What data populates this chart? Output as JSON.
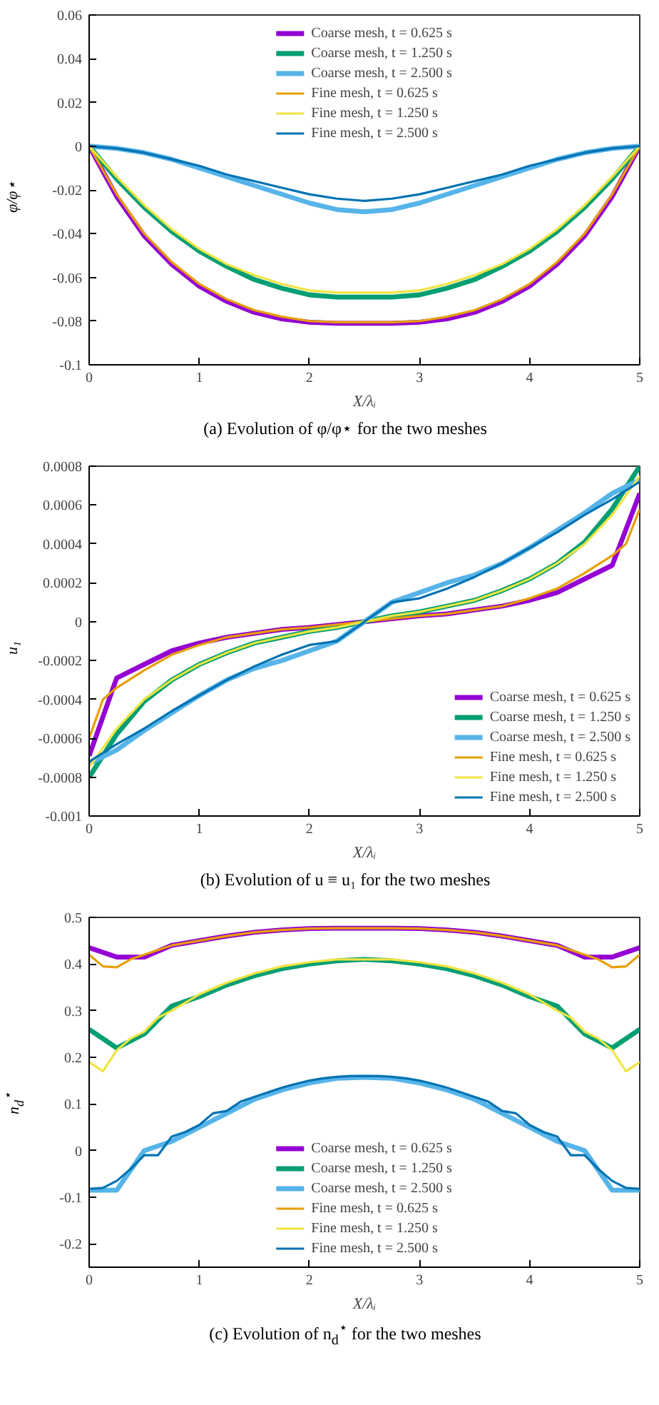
{
  "chart_data": [
    {
      "type": "line",
      "title": "(a) Evolution of φ/φ⋆ for the two meshes",
      "xlabel": "X/λᵢ",
      "ylabel": "φ/φ⋆",
      "x": [
        0,
        0.25,
        0.5,
        0.75,
        1,
        1.25,
        1.5,
        1.75,
        2,
        2.25,
        2.5,
        2.75,
        3,
        3.25,
        3.5,
        3.75,
        4,
        4.25,
        4.5,
        4.75,
        5
      ],
      "xlim": [
        0,
        5
      ],
      "xticks": [
        0,
        1,
        2,
        3,
        4,
        5
      ],
      "ylim": [
        -0.1,
        0.06
      ],
      "yticks": [
        -0.1,
        -0.08,
        -0.06,
        -0.04,
        -0.02,
        0,
        0.02,
        0.04,
        0.06
      ],
      "grid": false,
      "legend": "top",
      "line_style": "solid",
      "marker": "none",
      "series": [
        {
          "name": "Coarse mesh, t = 0.625 s",
          "color": "#9400d3",
          "values": [
            0,
            -0.023,
            -0.041,
            -0.054,
            -0.064,
            -0.071,
            -0.076,
            -0.079,
            -0.0805,
            -0.081,
            -0.081,
            -0.081,
            -0.0805,
            -0.079,
            -0.076,
            -0.071,
            -0.064,
            -0.054,
            -0.041,
            -0.023,
            0
          ]
        },
        {
          "name": "Coarse mesh, t = 1.250 s",
          "color": "#009e73",
          "values": [
            0,
            -0.015,
            -0.028,
            -0.039,
            -0.048,
            -0.055,
            -0.061,
            -0.065,
            -0.068,
            -0.069,
            -0.069,
            -0.069,
            -0.068,
            -0.065,
            -0.061,
            -0.055,
            -0.048,
            -0.039,
            -0.028,
            -0.015,
            0
          ]
        },
        {
          "name": "Coarse mesh, t = 2.500 s",
          "color": "#56b4e9",
          "values": [
            0,
            -0.001,
            -0.003,
            -0.006,
            -0.01,
            -0.014,
            -0.018,
            -0.022,
            -0.026,
            -0.029,
            -0.03,
            -0.029,
            -0.026,
            -0.022,
            -0.018,
            -0.014,
            -0.01,
            -0.006,
            -0.003,
            -0.001,
            0
          ]
        },
        {
          "name": "Fine mesh, t = 0.625 s",
          "color": "#e69f00",
          "values": [
            0,
            -0.022,
            -0.04,
            -0.053,
            -0.063,
            -0.07,
            -0.075,
            -0.078,
            -0.08,
            -0.0805,
            -0.0805,
            -0.0805,
            -0.08,
            -0.078,
            -0.075,
            -0.07,
            -0.063,
            -0.053,
            -0.04,
            -0.022,
            0
          ]
        },
        {
          "name": "Fine mesh, t = 1.250 s",
          "color": "#f0e442",
          "values": [
            0,
            -0.014,
            -0.027,
            -0.038,
            -0.047,
            -0.054,
            -0.059,
            -0.063,
            -0.066,
            -0.067,
            -0.067,
            -0.067,
            -0.066,
            -0.063,
            -0.059,
            -0.054,
            -0.047,
            -0.038,
            -0.027,
            -0.014,
            0
          ]
        },
        {
          "name": "Fine mesh, t = 2.500 s",
          "color": "#0072b2",
          "values": [
            0,
            -0.001,
            -0.003,
            -0.006,
            -0.009,
            -0.013,
            -0.016,
            -0.019,
            -0.022,
            -0.024,
            -0.025,
            -0.024,
            -0.022,
            -0.019,
            -0.016,
            -0.013,
            -0.009,
            -0.006,
            -0.003,
            -0.001,
            0
          ]
        }
      ]
    },
    {
      "type": "line",
      "title": "(b) Evolution of u ≡ u₁ for the two meshes",
      "xlabel": "X/λᵢ",
      "ylabel": "u₁",
      "x": [
        0,
        0.25,
        0.5,
        0.75,
        1,
        1.25,
        1.5,
        1.75,
        2,
        2.25,
        2.5,
        2.75,
        3,
        3.25,
        3.5,
        3.75,
        4,
        4.25,
        4.5,
        4.75,
        5
      ],
      "xlim": [
        0,
        5
      ],
      "xticks": [
        0,
        1,
        2,
        3,
        4,
        5
      ],
      "ylim": [
        -0.001,
        0.0008
      ],
      "yticks": [
        -0.001,
        -0.0008,
        -0.0006,
        -0.0004,
        -0.0002,
        0,
        0.0002,
        0.0004,
        0.0006,
        0.0008
      ],
      "grid": false,
      "legend": "bottom right",
      "line_style": "solid",
      "marker": "none",
      "series": [
        {
          "name": "Coarse mesh, t = 0.625 s",
          "color": "#9400d3",
          "values": [
            -0.00069,
            -0.00029,
            -0.00022,
            -0.00015,
            -0.00011,
            -8e-05,
            -6e-05,
            -4e-05,
            -3e-05,
            -1.5e-05,
            0,
            1.5e-05,
            3e-05,
            4e-05,
            6e-05,
            8e-05,
            0.00011,
            0.00015,
            0.00022,
            0.00029,
            0.00066
          ]
        },
        {
          "name": "Coarse mesh, t = 1.250 s",
          "color": "#009e73",
          "values": [
            -0.0008,
            -0.00058,
            -0.00041,
            -0.0003,
            -0.00022,
            -0.00016,
            -0.00011,
            -8e-05,
            -5e-05,
            -3e-05,
            0,
            3e-05,
            5e-05,
            8e-05,
            0.00011,
            0.00016,
            0.00022,
            0.0003,
            0.00041,
            0.00058,
            0.0008
          ]
        },
        {
          "name": "Coarse mesh, t = 2.500 s",
          "color": "#56b4e9",
          "values": [
            -0.00073,
            -0.00066,
            -0.00056,
            -0.00047,
            -0.00038,
            -0.0003,
            -0.00024,
            -0.0002,
            -0.00015,
            -0.0001,
            0,
            0.0001,
            0.00015,
            0.0002,
            0.00024,
            0.0003,
            0.00038,
            0.00047,
            0.00056,
            0.00066,
            0.00073
          ]
        },
        {
          "name": "Fine mesh, t = 0.625 s",
          "color": "#e69f00",
          "x": [
            0,
            0.125,
            0.25,
            0.5,
            0.75,
            1,
            1.25,
            1.5,
            1.75,
            2,
            2.25,
            2.5,
            2.75,
            3,
            3.25,
            3.5,
            3.75,
            4,
            4.25,
            4.5,
            4.75,
            4.875,
            5
          ],
          "values": [
            -0.0006,
            -0.0004,
            -0.00034,
            -0.00025,
            -0.00017,
            -0.00012,
            -8e-05,
            -6e-05,
            -4e-05,
            -3e-05,
            -1.5e-05,
            0,
            1.5e-05,
            3e-05,
            4e-05,
            6e-05,
            8e-05,
            0.00012,
            0.00017,
            0.00025,
            0.00034,
            0.0004,
            0.00058
          ]
        },
        {
          "name": "Fine mesh, t = 1.250 s",
          "color": "#f0e442",
          "values": [
            -0.00075,
            -0.00055,
            -0.0004,
            -0.0003,
            -0.00022,
            -0.00016,
            -0.00011,
            -8e-05,
            -5e-05,
            -3e-05,
            0,
            3e-05,
            5e-05,
            8e-05,
            0.00011,
            0.00016,
            0.00022,
            0.0003,
            0.0004,
            0.00055,
            0.00075
          ]
        },
        {
          "name": "Fine mesh, t = 2.500 s",
          "color": "#0072b2",
          "values": [
            -0.00072,
            -0.00063,
            -0.00055,
            -0.00046,
            -0.00038,
            -0.0003,
            -0.00023,
            -0.00017,
            -0.00012,
            -0.0001,
            0,
            0.0001,
            0.00012,
            0.00017,
            0.00023,
            0.0003,
            0.00038,
            0.00046,
            0.00055,
            0.00063,
            0.00072
          ]
        }
      ]
    },
    {
      "type": "line",
      "title": "(c) Evolution of n$_{d}$$^{⋆}$ for the two meshes",
      "xlabel": "X/λᵢ",
      "ylabel": "n$_{d}$$^{⋆}$",
      "x": [
        0,
        0.25,
        0.5,
        0.75,
        1,
        1.25,
        1.5,
        1.75,
        2,
        2.25,
        2.5,
        2.75,
        3,
        3.25,
        3.5,
        3.75,
        4,
        4.25,
        4.5,
        4.75,
        5
      ],
      "xlim": [
        0,
        5
      ],
      "xticks": [
        0,
        1,
        2,
        3,
        4,
        5
      ],
      "ylim": [
        -0.25,
        0.5
      ],
      "yticks": [
        -0.2,
        -0.1,
        0,
        0.1,
        0.2,
        0.3,
        0.4,
        0.5
      ],
      "grid": false,
      "legend": "bottom",
      "line_style": "solid",
      "marker": "none",
      "series": [
        {
          "name": "Coarse mesh, t = 0.625 s",
          "color": "#9400d3",
          "values": [
            0.435,
            0.415,
            0.415,
            0.44,
            0.45,
            0.46,
            0.468,
            0.473,
            0.476,
            0.477,
            0.477,
            0.477,
            0.476,
            0.473,
            0.468,
            0.46,
            0.45,
            0.44,
            0.415,
            0.415,
            0.435
          ]
        },
        {
          "name": "Coarse mesh, t = 1.250 s",
          "color": "#009e73",
          "values": [
            0.26,
            0.22,
            0.25,
            0.31,
            0.33,
            0.355,
            0.375,
            0.39,
            0.4,
            0.407,
            0.41,
            0.407,
            0.4,
            0.39,
            0.375,
            0.355,
            0.33,
            0.31,
            0.25,
            0.22,
            0.26
          ]
        },
        {
          "name": "Coarse mesh, t = 2.500 s",
          "color": "#56b4e9",
          "values": [
            -0.085,
            -0.085,
            0,
            0.02,
            0.05,
            0.08,
            0.11,
            0.13,
            0.145,
            0.155,
            0.157,
            0.155,
            0.145,
            0.13,
            0.11,
            0.08,
            0.05,
            0.02,
            0,
            -0.085,
            -0.085
          ]
        },
        {
          "name": "Fine mesh, t = 0.625 s",
          "color": "#e69f00",
          "x": [
            0,
            0.125,
            0.25,
            0.375,
            0.5,
            0.75,
            1,
            1.25,
            1.5,
            1.75,
            2,
            2.25,
            2.5,
            2.75,
            3,
            3.25,
            3.5,
            3.75,
            4,
            4.25,
            4.5,
            4.625,
            4.75,
            4.875,
            5
          ],
          "values": [
            0.42,
            0.395,
            0.393,
            0.41,
            0.42,
            0.44,
            0.45,
            0.46,
            0.468,
            0.473,
            0.476,
            0.477,
            0.477,
            0.477,
            0.476,
            0.473,
            0.468,
            0.46,
            0.45,
            0.44,
            0.42,
            0.41,
            0.393,
            0.395,
            0.42
          ]
        },
        {
          "name": "Fine mesh, t = 1.250 s",
          "color": "#f0e442",
          "x": [
            0,
            0.125,
            0.25,
            0.375,
            0.5,
            0.625,
            0.75,
            1,
            1.25,
            1.5,
            1.75,
            2,
            2.25,
            2.5,
            2.75,
            3,
            3.25,
            3.5,
            3.75,
            4,
            4.25,
            4.375,
            4.5,
            4.625,
            4.75,
            4.875,
            5
          ],
          "values": [
            0.19,
            0.17,
            0.215,
            0.24,
            0.255,
            0.285,
            0.3,
            0.335,
            0.36,
            0.38,
            0.395,
            0.404,
            0.41,
            0.41,
            0.41,
            0.404,
            0.395,
            0.38,
            0.36,
            0.335,
            0.3,
            0.285,
            0.255,
            0.24,
            0.215,
            0.17,
            0.19
          ]
        },
        {
          "name": "Fine mesh, t = 2.500 s",
          "color": "#0072b2",
          "x": [
            0,
            0.125,
            0.25,
            0.375,
            0.5,
            0.625,
            0.75,
            0.875,
            1,
            1.125,
            1.25,
            1.375,
            1.5,
            1.625,
            1.75,
            1.875,
            2,
            2.125,
            2.25,
            2.375,
            2.5,
            2.625,
            2.75,
            2.875,
            3,
            3.125,
            3.25,
            3.375,
            3.5,
            3.625,
            3.75,
            3.875,
            4,
            4.125,
            4.25,
            4.375,
            4.5,
            4.625,
            4.75,
            4.875,
            5
          ],
          "values": [
            -0.082,
            -0.08,
            -0.065,
            -0.04,
            -0.01,
            -0.01,
            0.03,
            0.04,
            0.055,
            0.08,
            0.085,
            0.105,
            0.115,
            0.125,
            0.135,
            0.143,
            0.15,
            0.155,
            0.158,
            0.16,
            0.16,
            0.16,
            0.158,
            0.155,
            0.15,
            0.143,
            0.135,
            0.125,
            0.115,
            0.105,
            0.085,
            0.08,
            0.055,
            0.04,
            0.03,
            -0.01,
            -0.01,
            -0.04,
            -0.065,
            -0.08,
            -0.082
          ]
        }
      ]
    }
  ]
}
